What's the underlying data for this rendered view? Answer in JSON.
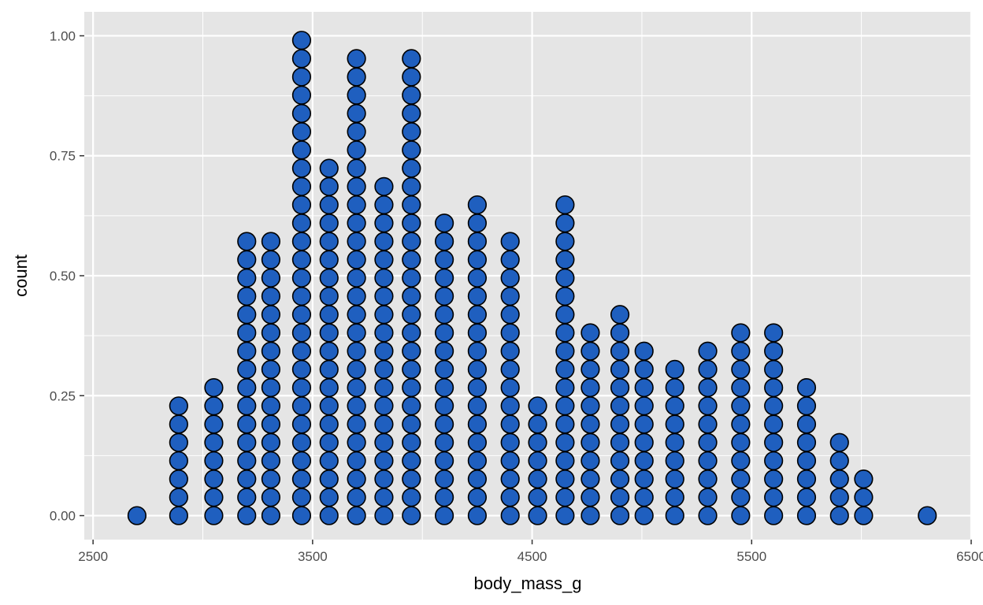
{
  "chart_data": {
    "type": "dotplot",
    "xlabel": "body_mass_g",
    "ylabel": "count",
    "xlim": [
      2460,
      6500
    ],
    "ylim": [
      -0.05,
      1.05
    ],
    "x_ticks": [
      2500,
      3500,
      4500,
      5500,
      6500
    ],
    "x_minor_ticks": [
      3000,
      4000,
      5000,
      6000
    ],
    "y_ticks": [
      0.0,
      0.25,
      0.5,
      0.75,
      1.0
    ],
    "y_minor_ticks": [
      0.125,
      0.375,
      0.625,
      0.875
    ],
    "x_tick_labels": [
      "2500",
      "3500",
      "4500",
      "5500",
      "6500"
    ],
    "y_tick_labels": [
      "0.00",
      "0.25",
      "0.50",
      "0.75",
      "1.00"
    ],
    "stack_ratio": 0.0381,
    "bins": [
      {
        "x": 2700,
        "count": 1
      },
      {
        "x": 2890,
        "count": 7
      },
      {
        "x": 3050,
        "count": 8
      },
      {
        "x": 3200,
        "count": 16
      },
      {
        "x": 3310,
        "count": 16
      },
      {
        "x": 3450,
        "count": 27
      },
      {
        "x": 3575,
        "count": 20
      },
      {
        "x": 3700,
        "count": 26
      },
      {
        "x": 3825,
        "count": 19
      },
      {
        "x": 3950,
        "count": 26
      },
      {
        "x": 4100,
        "count": 17
      },
      {
        "x": 4250,
        "count": 18
      },
      {
        "x": 4400,
        "count": 16
      },
      {
        "x": 4525,
        "count": 7
      },
      {
        "x": 4650,
        "count": 18
      },
      {
        "x": 4765,
        "count": 11
      },
      {
        "x": 4900,
        "count": 12
      },
      {
        "x": 5010,
        "count": 10
      },
      {
        "x": 5150,
        "count": 9
      },
      {
        "x": 5300,
        "count": 10
      },
      {
        "x": 5450,
        "count": 11
      },
      {
        "x": 5600,
        "count": 11
      },
      {
        "x": 5750,
        "count": 8
      },
      {
        "x": 5900,
        "count": 5
      },
      {
        "x": 6010,
        "count": 3
      },
      {
        "x": 6300,
        "count": 1
      }
    ],
    "colors": {
      "panel_background": "#e5e5e5",
      "grid": "#ffffff",
      "dot_fill": "#1f5fbf",
      "dot_stroke": "#000000",
      "tick": "#333333"
    }
  }
}
